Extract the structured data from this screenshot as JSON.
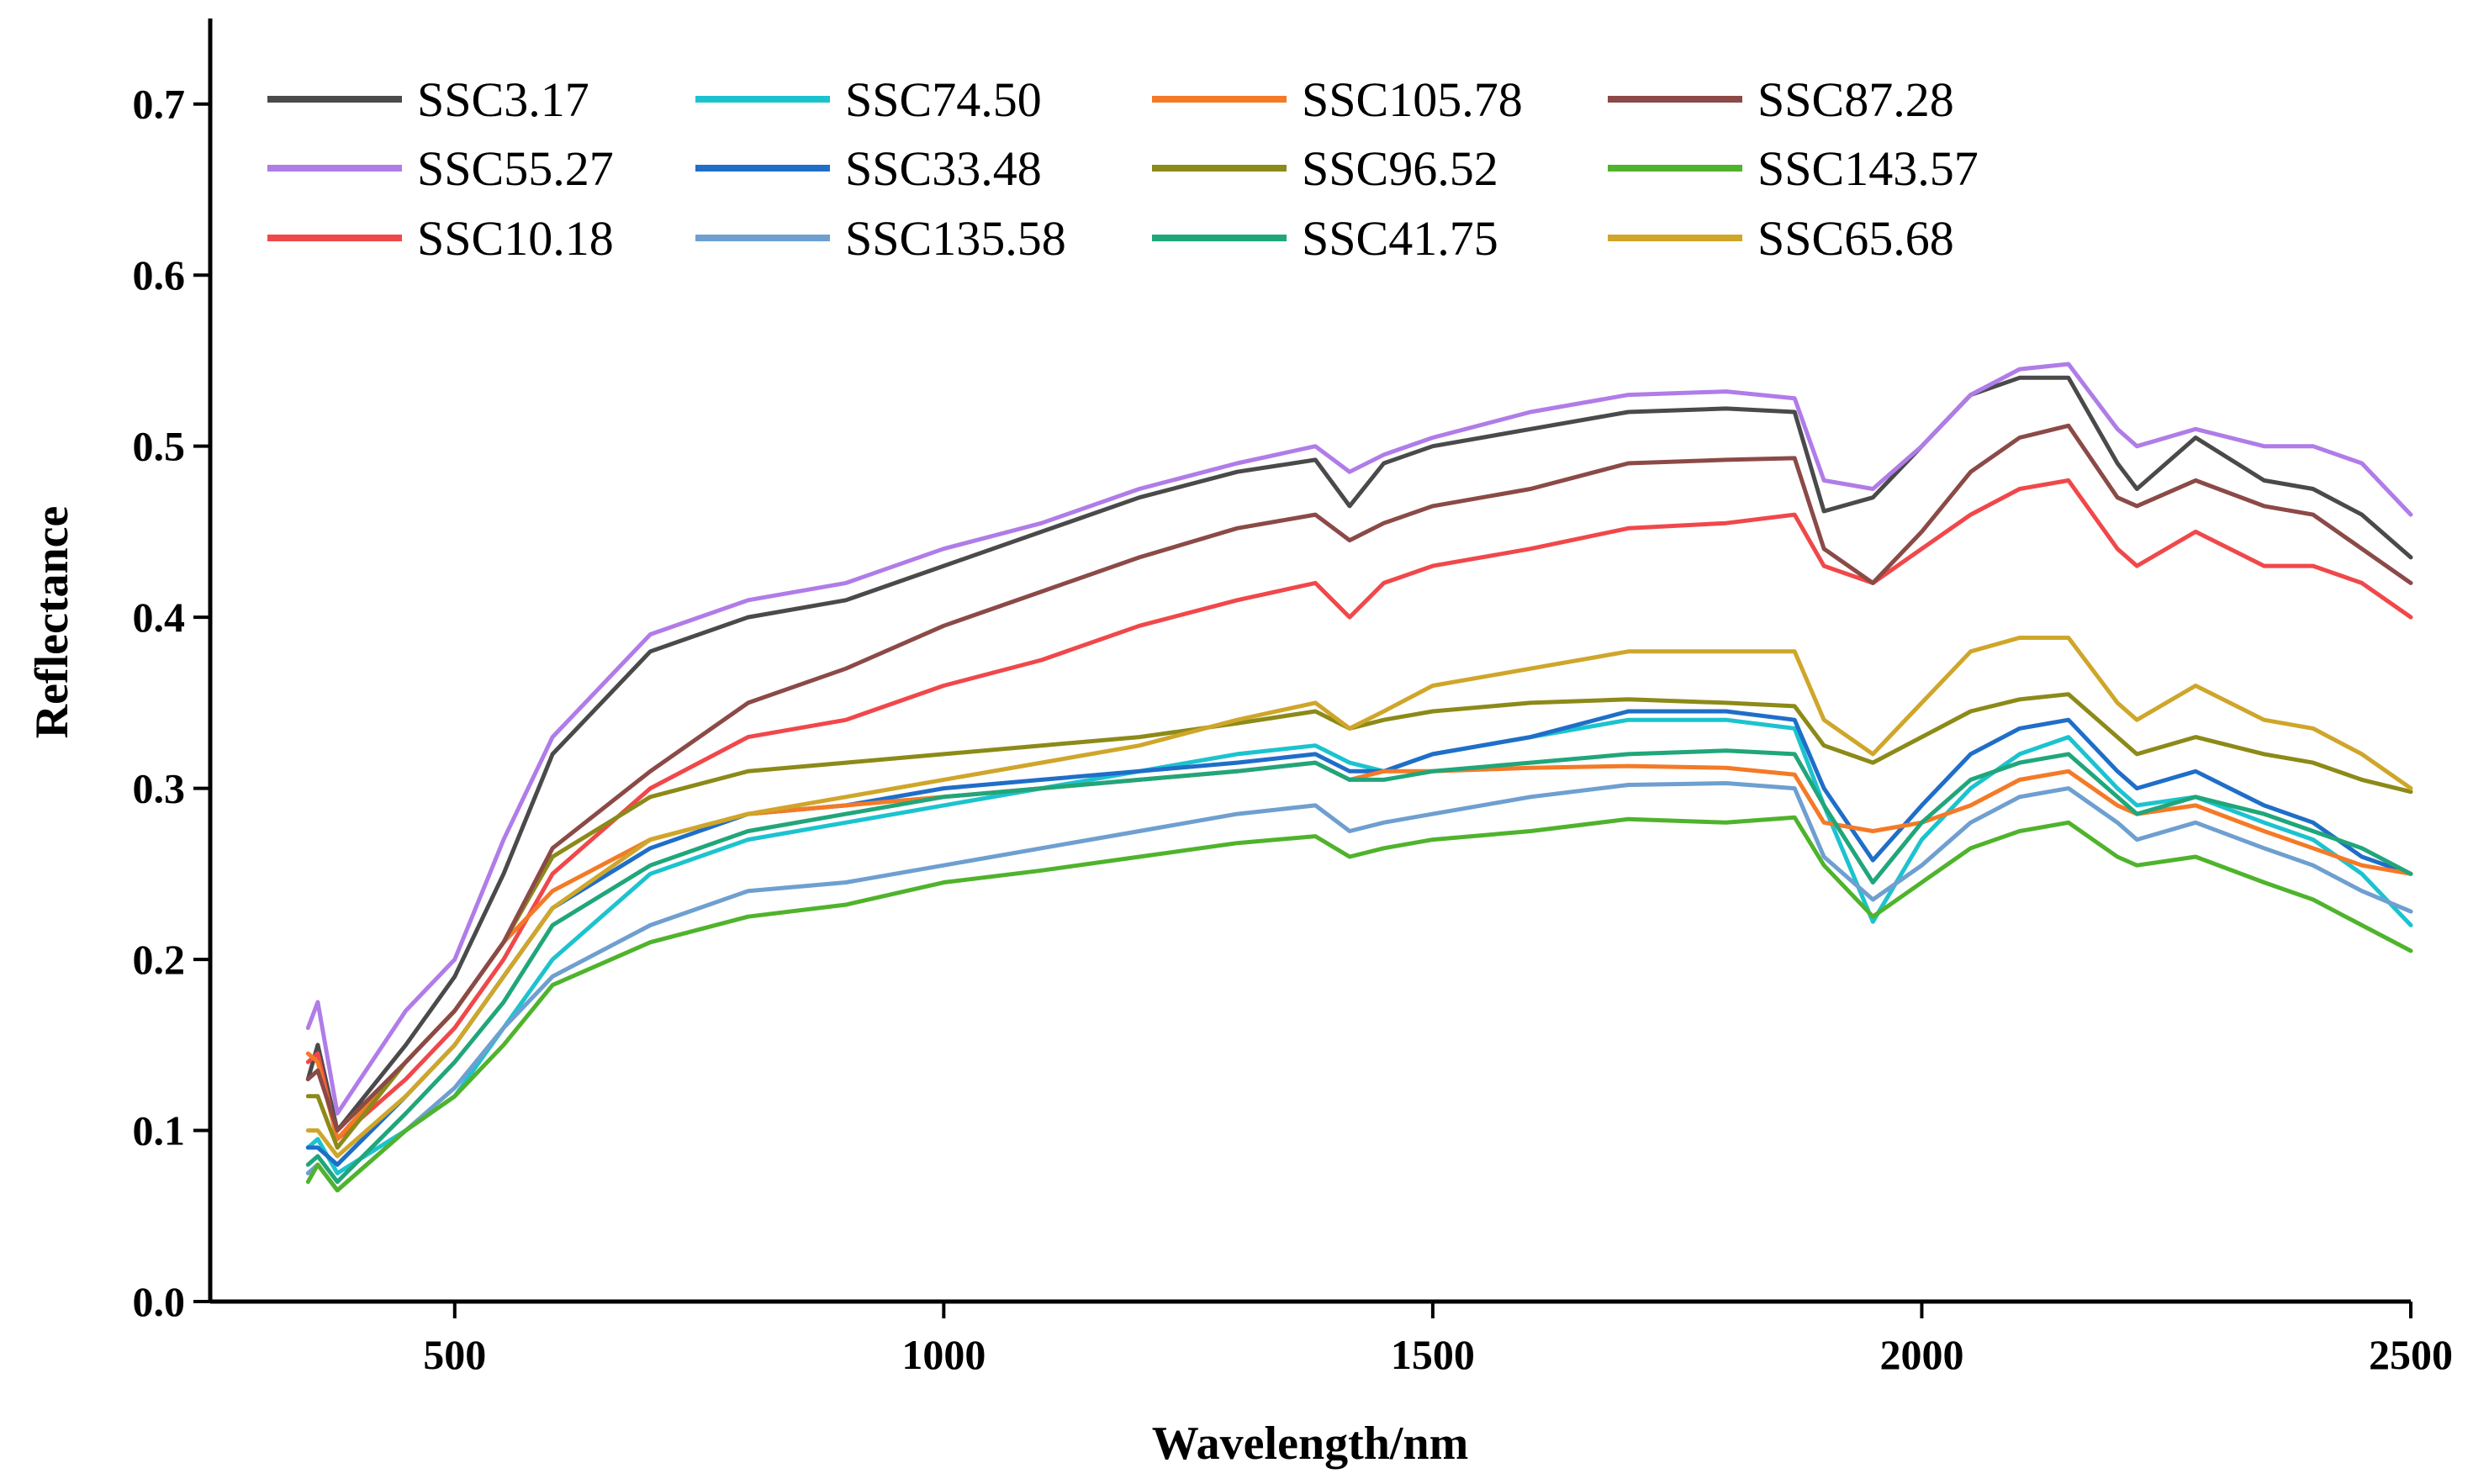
{
  "chart_data": {
    "type": "line",
    "title": "",
    "xlabel": "Wavelength/nm",
    "ylabel": "Reflectance",
    "xlim": [
      250,
      2500
    ],
    "ylim": [
      0.0,
      0.75
    ],
    "x_ticks": [
      500,
      1000,
      1500,
      2000,
      2500
    ],
    "x_tick_labels": [
      "500",
      "1000",
      "1500",
      "2000",
      "2500"
    ],
    "y_ticks": [
      0.0,
      0.1,
      0.2,
      0.3,
      0.4,
      0.5,
      0.6,
      0.7
    ],
    "y_tick_labels": [
      "0.0",
      "0.1",
      "0.2",
      "0.3",
      "0.4",
      "0.5",
      "0.6",
      "0.7"
    ],
    "grid": false,
    "legend_position": "top-left",
    "x": [
      350,
      360,
      380,
      450,
      500,
      550,
      600,
      700,
      800,
      900,
      1000,
      1100,
      1200,
      1300,
      1380,
      1415,
      1450,
      1500,
      1600,
      1700,
      1800,
      1870,
      1900,
      1950,
      2000,
      2050,
      2100,
      2150,
      2200,
      2220,
      2280,
      2350,
      2400,
      2450,
      2500
    ],
    "series": [
      {
        "name": "SSC3.17",
        "color": "#4a4a4a",
        "values": [
          0.13,
          0.15,
          0.1,
          0.15,
          0.19,
          0.25,
          0.32,
          0.38,
          0.4,
          0.41,
          0.43,
          0.45,
          0.47,
          0.485,
          0.492,
          0.465,
          0.49,
          0.5,
          0.51,
          0.52,
          0.522,
          0.52,
          0.462,
          0.47,
          0.5,
          0.53,
          0.54,
          0.54,
          0.49,
          0.475,
          0.505,
          0.48,
          0.475,
          0.46,
          0.435
        ]
      },
      {
        "name": "SSC55.27",
        "color": "#b07ce8",
        "values": [
          0.16,
          0.175,
          0.11,
          0.17,
          0.2,
          0.27,
          0.33,
          0.39,
          0.41,
          0.42,
          0.44,
          0.455,
          0.475,
          0.49,
          0.5,
          0.485,
          0.495,
          0.505,
          0.52,
          0.53,
          0.532,
          0.528,
          0.48,
          0.475,
          0.5,
          0.53,
          0.545,
          0.548,
          0.51,
          0.5,
          0.51,
          0.5,
          0.5,
          0.49,
          0.46
        ]
      },
      {
        "name": "SSC10.18",
        "color": "#f0484a",
        "values": [
          0.14,
          0.145,
          0.095,
          0.13,
          0.16,
          0.2,
          0.25,
          0.3,
          0.33,
          0.34,
          0.36,
          0.375,
          0.395,
          0.41,
          0.42,
          0.4,
          0.42,
          0.43,
          0.44,
          0.452,
          0.455,
          0.46,
          0.43,
          0.42,
          0.44,
          0.46,
          0.475,
          0.48,
          0.44,
          0.43,
          0.45,
          0.43,
          0.43,
          0.42,
          0.4
        ]
      },
      {
        "name": "SSC74.50",
        "color": "#1cc3cf",
        "values": [
          0.09,
          0.095,
          0.075,
          0.1,
          0.12,
          0.16,
          0.2,
          0.25,
          0.27,
          0.28,
          0.29,
          0.3,
          0.31,
          0.32,
          0.325,
          0.315,
          0.31,
          0.32,
          0.33,
          0.34,
          0.34,
          0.335,
          0.29,
          0.222,
          0.27,
          0.3,
          0.32,
          0.33,
          0.3,
          0.29,
          0.295,
          0.28,
          0.27,
          0.25,
          0.22
        ]
      },
      {
        "name": "SSC33.48",
        "color": "#1f6ec8",
        "values": [
          0.09,
          0.09,
          0.08,
          0.12,
          0.15,
          0.19,
          0.23,
          0.265,
          0.285,
          0.29,
          0.3,
          0.305,
          0.31,
          0.315,
          0.32,
          0.31,
          0.31,
          0.32,
          0.33,
          0.345,
          0.345,
          0.34,
          0.3,
          0.258,
          0.29,
          0.32,
          0.335,
          0.34,
          0.31,
          0.3,
          0.31,
          0.29,
          0.28,
          0.26,
          0.25
        ]
      },
      {
        "name": "SSC135.58",
        "color": "#6e9fd0",
        "values": [
          0.075,
          0.08,
          0.065,
          0.1,
          0.125,
          0.16,
          0.19,
          0.22,
          0.24,
          0.245,
          0.255,
          0.265,
          0.275,
          0.285,
          0.29,
          0.275,
          0.28,
          0.285,
          0.295,
          0.302,
          0.303,
          0.3,
          0.26,
          0.235,
          0.255,
          0.28,
          0.295,
          0.3,
          0.28,
          0.27,
          0.28,
          0.265,
          0.255,
          0.24,
          0.228
        ]
      },
      {
        "name": "SSC105.78",
        "color": "#f47a27",
        "values": [
          0.145,
          0.14,
          0.095,
          0.14,
          0.17,
          0.21,
          0.24,
          0.27,
          0.285,
          0.29,
          0.295,
          0.3,
          0.305,
          0.31,
          0.315,
          0.305,
          0.31,
          0.31,
          0.312,
          0.313,
          0.312,
          0.308,
          0.28,
          0.275,
          0.28,
          0.29,
          0.305,
          0.31,
          0.29,
          0.285,
          0.29,
          0.275,
          0.265,
          0.255,
          0.25
        ]
      },
      {
        "name": "SSC96.52",
        "color": "#8c8a18",
        "values": [
          0.12,
          0.12,
          0.09,
          0.14,
          0.17,
          0.21,
          0.26,
          0.295,
          0.31,
          0.315,
          0.32,
          0.325,
          0.33,
          0.338,
          0.345,
          0.335,
          0.34,
          0.345,
          0.35,
          0.352,
          0.35,
          0.348,
          0.325,
          0.315,
          0.33,
          0.345,
          0.352,
          0.355,
          0.33,
          0.32,
          0.33,
          0.32,
          0.315,
          0.305,
          0.298
        ]
      },
      {
        "name": "SSC41.75",
        "color": "#20a67a",
        "values": [
          0.08,
          0.085,
          0.07,
          0.11,
          0.14,
          0.175,
          0.22,
          0.255,
          0.275,
          0.285,
          0.295,
          0.3,
          0.305,
          0.31,
          0.315,
          0.305,
          0.305,
          0.31,
          0.315,
          0.32,
          0.322,
          0.32,
          0.29,
          0.245,
          0.28,
          0.305,
          0.315,
          0.32,
          0.295,
          0.285,
          0.295,
          0.285,
          0.275,
          0.265,
          0.25
        ]
      },
      {
        "name": "SSC87.28",
        "color": "#8b4a47",
        "values": [
          0.13,
          0.135,
          0.1,
          0.14,
          0.17,
          0.21,
          0.265,
          0.31,
          0.35,
          0.37,
          0.395,
          0.415,
          0.435,
          0.452,
          0.46,
          0.445,
          0.455,
          0.465,
          0.475,
          0.49,
          0.492,
          0.493,
          0.44,
          0.42,
          0.45,
          0.485,
          0.505,
          0.512,
          0.47,
          0.465,
          0.48,
          0.465,
          0.46,
          0.44,
          0.42
        ]
      },
      {
        "name": "SSC143.57",
        "color": "#4fb32c",
        "values": [
          0.07,
          0.08,
          0.065,
          0.1,
          0.12,
          0.15,
          0.185,
          0.21,
          0.225,
          0.232,
          0.245,
          0.252,
          0.26,
          0.268,
          0.272,
          0.26,
          0.265,
          0.27,
          0.275,
          0.282,
          0.28,
          0.283,
          0.255,
          0.225,
          0.245,
          0.265,
          0.275,
          0.28,
          0.26,
          0.255,
          0.26,
          0.245,
          0.235,
          0.22,
          0.205
        ]
      },
      {
        "name": "SSC65.68",
        "color": "#cfa62a",
        "values": [
          0.1,
          0.1,
          0.085,
          0.12,
          0.15,
          0.19,
          0.23,
          0.27,
          0.285,
          0.295,
          0.305,
          0.315,
          0.325,
          0.34,
          0.35,
          0.335,
          0.345,
          0.36,
          0.37,
          0.38,
          0.38,
          0.38,
          0.34,
          0.32,
          0.35,
          0.38,
          0.388,
          0.388,
          0.35,
          0.34,
          0.36,
          0.34,
          0.335,
          0.32,
          0.3
        ]
      }
    ]
  }
}
